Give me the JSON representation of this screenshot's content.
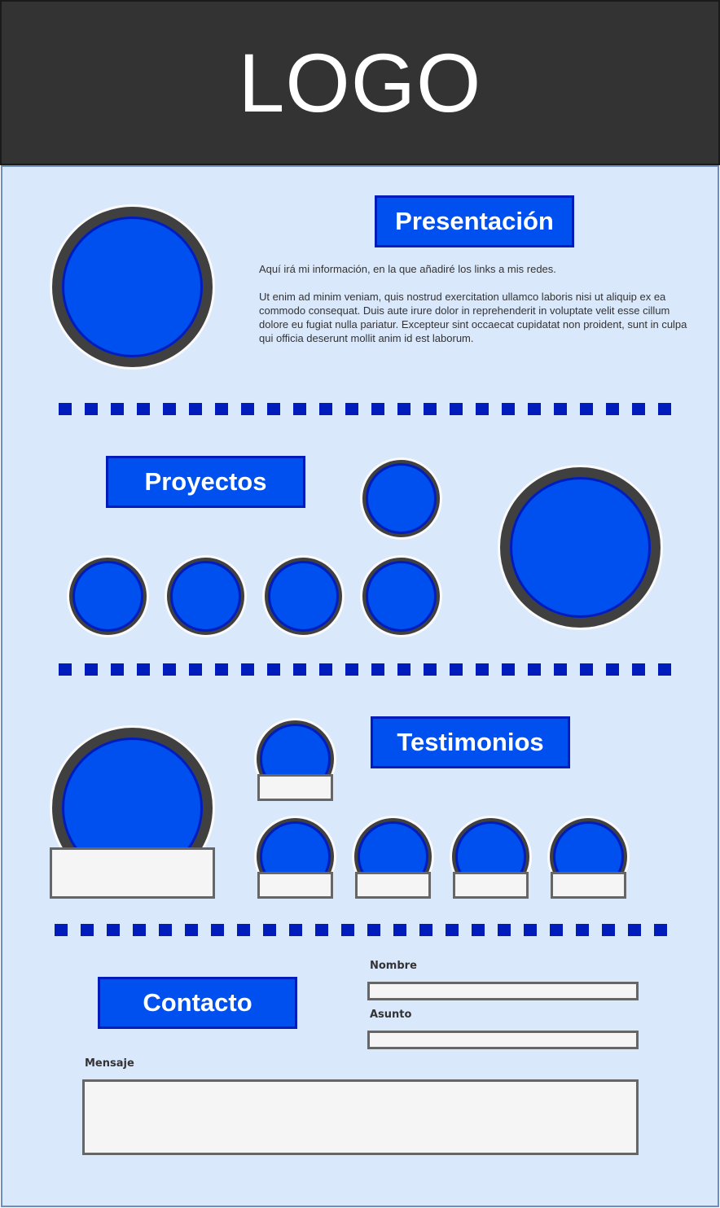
{
  "header": {
    "logo_text": "LOGO"
  },
  "sections": {
    "presentacion": {
      "title": "Presentación",
      "paragraphs": [
        "Aquí irá mi información, en la que añadiré los links a mis redes.",
        "Ut enim ad minim veniam, quis nostrud exercitation ullamco laboris nisi ut aliquip ex ea commodo consequat. Duis aute irure dolor in reprehenderit in voluptate velit esse cillum dolore eu fugiat nulla pariatur. Excepteur sint occaecat cupidatat non proident, sunt in culpa qui officia deserunt mollit anim id est laborum."
      ]
    },
    "proyectos": {
      "title": "Proyectos"
    },
    "testimonios": {
      "title": "Testimonios"
    },
    "contacto": {
      "title": "Contacto",
      "fields": {
        "nombre_label": "Nombre",
        "asunto_label": "Asunto",
        "mensaje_label": "Mensaje"
      }
    }
  },
  "colors": {
    "header_bg": "#333333",
    "canvas_bg": "#dae8fc",
    "accent_blue": "#0050ef",
    "dark_blue": "#001dbc",
    "ring_grey": "#404040",
    "box_grey": "#f5f5f5"
  }
}
